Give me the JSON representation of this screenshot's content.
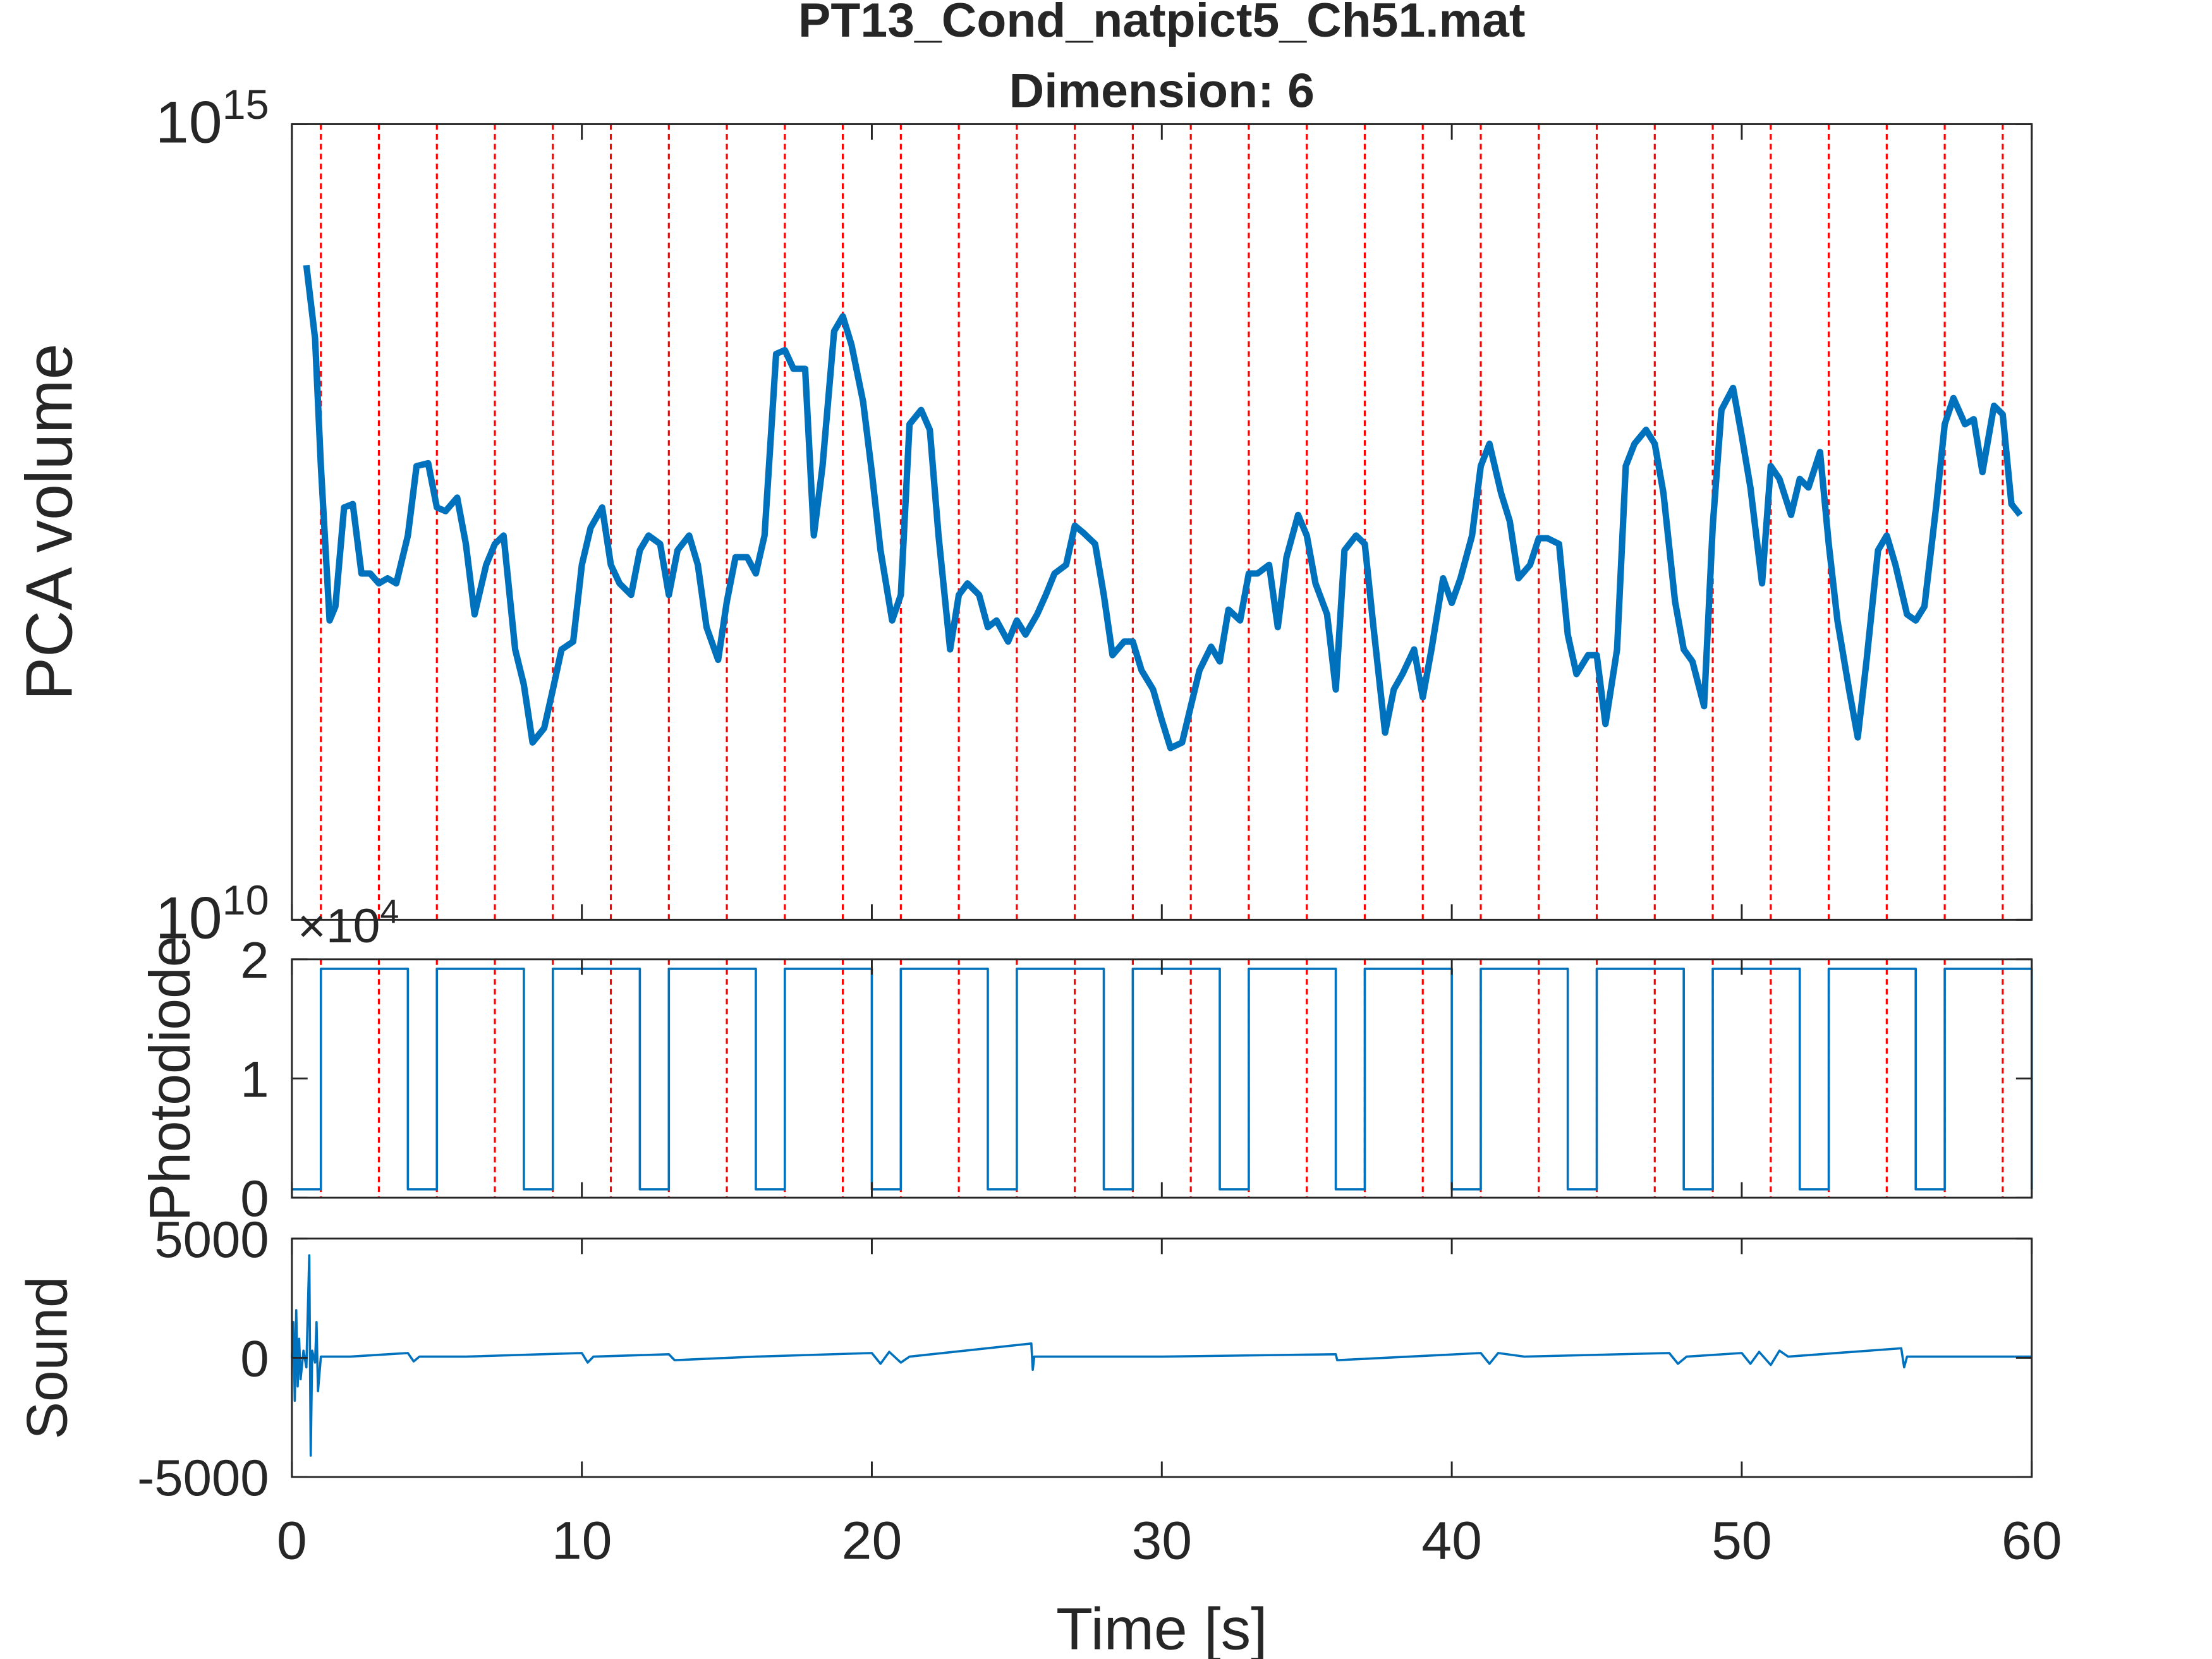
{
  "chart_data": [
    {
      "type": "line",
      "title": [
        "PT13_Cond_natpict5_Ch51.mat",
        "Dimension: 6"
      ],
      "ylabel": "PCA volume",
      "yscale": "log",
      "ylim": [
        10000000000.0,
        1000000000000000.0
      ],
      "yticks": [
        {
          "value": 10000000000.0,
          "label": "10^10"
        },
        {
          "value": 1000000000000000.0,
          "label": "10^15"
        }
      ],
      "xlim": [
        0,
        60
      ],
      "xticks": [
        0,
        10,
        20,
        30,
        40,
        50,
        60
      ],
      "show_xtick_labels": false,
      "vlines": [
        1,
        3,
        5,
        7,
        9,
        11,
        13,
        15,
        17,
        19,
        21,
        23,
        25,
        27,
        29,
        31,
        33,
        35,
        37,
        39,
        41,
        43,
        45,
        47,
        49,
        51,
        53,
        55,
        57,
        59
      ],
      "vline_color": "#ff0000",
      "series": [
        {
          "color": "#0072bd",
          "x": [
            0.5,
            0.8,
            1,
            1.3,
            1.5,
            1.8,
            2.1,
            2.4,
            2.7,
            3,
            3.3,
            3.6,
            4,
            4.3,
            4.7,
            5,
            5.3,
            5.7,
            6,
            6.3,
            6.7,
            7,
            7.3,
            7.7,
            8,
            8.3,
            8.7,
            9,
            9.3,
            9.7,
            10,
            10.3,
            10.7,
            11,
            11.3,
            11.7,
            12,
            12.3,
            12.7,
            13,
            13.3,
            13.7,
            14,
            14.3,
            14.7,
            15,
            15.3,
            15.7,
            16,
            16.3,
            16.7,
            17,
            17.3,
            17.7,
            18,
            18.3,
            18.7,
            19,
            19.3,
            19.7,
            20,
            20.3,
            20.7,
            21,
            21.3,
            21.7,
            22,
            22.3,
            22.7,
            23,
            23.3,
            23.7,
            24,
            24.3,
            24.7,
            25,
            25.3,
            25.7,
            26,
            26.3,
            26.7,
            27,
            27.3,
            27.7,
            28,
            28.3,
            28.7,
            29,
            29.3,
            29.7,
            30,
            30.3,
            30.7,
            31,
            31.3,
            31.7,
            32,
            32.3,
            32.7,
            33,
            33.3,
            33.7,
            34,
            34.3,
            34.7,
            35,
            35.3,
            35.7,
            36,
            36.3,
            36.7,
            37,
            37.3,
            37.7,
            38,
            38.3,
            38.7,
            39,
            39.3,
            39.7,
            40,
            40.3,
            40.7,
            41,
            41.3,
            41.7,
            42,
            42.3,
            42.7,
            43,
            43.3,
            43.7,
            44,
            44.3,
            44.7,
            45,
            45.3,
            45.7,
            46,
            46.3,
            46.7,
            47,
            47.3,
            47.7,
            48,
            48.3,
            48.7,
            49,
            49.3,
            49.7,
            50,
            50.3,
            50.7,
            51,
            51.3,
            51.7,
            52,
            52.3,
            52.7,
            53,
            53.3,
            53.7,
            54,
            54.3,
            54.7,
            55,
            55.3,
            55.7,
            56,
            56.3,
            56.7,
            57,
            57.3,
            57.7,
            58,
            58.3,
            58.7,
            59,
            59.3,
            59.6
          ],
          "values": [
            130000000000000.0,
            45000000000000.0,
            7100000000000.0,
            760000000000.0,
            930000000000.0,
            3900000000000.0,
            4100000000000.0,
            1500000000000.0,
            1500000000000.0,
            1300000000000.0,
            1400000000000.0,
            1300000000000.0,
            2600000000000.0,
            7100000000000.0,
            7400000000000.0,
            3900000000000.0,
            3700000000000.0,
            4500000000000.0,
            2300000000000.0,
            830000000000.0,
            1700000000000.0,
            2300000000000.0,
            2600000000000.0,
            500000000000.0,
            300000000000.0,
            130000000000.0,
            160000000000.0,
            280000000000.0,
            500000000000.0,
            560000000000.0,
            1700000000000.0,
            2900000000000.0,
            3900000000000.0,
            1700000000000.0,
            1300000000000.0,
            1100000000000.0,
            2100000000000.0,
            2600000000000.0,
            2300000000000.0,
            1100000000000.0,
            2100000000000.0,
            2600000000000.0,
            1700000000000.0,
            690000000000.0,
            430000000000.0,
            1000000000000.0,
            1900000000000.0,
            1900000000000.0,
            1500000000000.0,
            2600000000000.0,
            36000000000000.0,
            38000000000000.0,
            29000000000000.0,
            29000000000000.0,
            2600000000000.0,
            7100000000000.0,
            50000000000000.0,
            62000000000000.0,
            41000000000000.0,
            18000000000000.0,
            6500000000000.0,
            2100000000000.0,
            760000000000.0,
            1100000000000.0,
            13000000000000.0,
            16000000000000.0,
            12000000000000.0,
            2600000000000.0,
            500000000000.0,
            1100000000000.0,
            1300000000000.0,
            1100000000000.0,
            690000000000.0,
            760000000000.0,
            560000000000.0,
            760000000000.0,
            620000000000.0,
            830000000000.0,
            1100000000000.0,
            1500000000000.0,
            1700000000000.0,
            3000000000000.0,
            2700000000000.0,
            2300000000000.0,
            1100000000000.0,
            460000000000.0,
            560000000000.0,
            560000000000.0,
            370000000000.0,
            280000000000.0,
            180000000000.0,
            120000000000.0,
            130000000000.0,
            220000000000.0,
            370000000000.0,
            520000000000.0,
            420000000000.0,
            890000000000.0,
            760000000000.0,
            1500000000000.0,
            1500000000000.0,
            1700000000000.0,
            690000000000.0,
            1900000000000.0,
            3500000000000.0,
            2600000000000.0,
            1300000000000.0,
            830000000000.0,
            280000000000.0,
            2100000000000.0,
            2600000000000.0,
            2300000000000.0,
            690000000000.0,
            150000000000.0,
            280000000000.0,
            350000000000.0,
            500000000000.0,
            250000000000.0,
            500000000000.0,
            1400000000000.0,
            980000000000.0,
            1400000000000.0,
            2600000000000.0,
            7100000000000.0,
            9800000000000.0,
            4800000000000.0,
            3200000000000.0,
            1400000000000.0,
            1700000000000.0,
            2500000000000.0,
            2500000000000.0,
            2300000000000.0,
            620000000000.0,
            350000000000.0,
            460000000000.0,
            460000000000.0,
            170000000000.0,
            500000000000.0,
            7100000000000.0,
            9800000000000.0,
            12000000000000.0,
            9800000000000.0,
            4800000000000.0,
            1000000000000.0,
            500000000000.0,
            420000000000.0,
            220000000000.0,
            3000000000000.0,
            16000000000000.0,
            22000000000000.0,
            11000000000000.0,
            5200000000000.0,
            1300000000000.0,
            7100000000000.0,
            5900000000000.0,
            3500000000000.0,
            5900000000000.0,
            5200000000000.0,
            8700000000000.0,
            2300000000000.0,
            760000000000.0,
            280000000000.0,
            140000000000.0,
            420000000000.0,
            2100000000000.0,
            2600000000000.0,
            1700000000000.0,
            830000000000.0,
            760000000000.0,
            930000000000.0,
            3900000000000.0,
            13000000000000.0,
            19000000000000.0,
            13000000000000.0,
            14000000000000.0,
            6500000000000.0,
            17000000000000.0,
            15000000000000.0,
            4100000000000.0,
            3500000000000.0
          ]
        }
      ]
    },
    {
      "type": "line",
      "ylabel": "Photodiode",
      "y_multiplier": "×10^4",
      "ylim": [
        0,
        20000
      ],
      "yticks": [
        0,
        {
          "value": 10000,
          "label": "1"
        },
        {
          "value": 20000,
          "label": "2"
        }
      ],
      "xlim": [
        0,
        60
      ],
      "xticks": [
        0,
        10,
        20,
        30,
        40,
        50,
        60
      ],
      "show_xtick_labels": false,
      "vlines": [
        1,
        3,
        5,
        7,
        9,
        11,
        13,
        15,
        17,
        19,
        21,
        23,
        25,
        27,
        29,
        31,
        33,
        35,
        37,
        39,
        41,
        43,
        45,
        47,
        49,
        51,
        53,
        55,
        57,
        59
      ],
      "vline_color": "#ff0000",
      "series": [
        {
          "color": "#0072bd",
          "x": [
            0,
            1,
            1,
            4,
            4,
            5,
            5,
            8,
            8,
            9,
            9,
            12,
            12,
            13,
            13,
            16,
            16,
            17,
            17,
            20,
            20,
            21,
            21,
            24,
            24,
            25,
            25,
            28,
            28,
            29,
            29,
            32,
            32,
            33,
            33,
            36,
            36,
            37,
            37,
            40,
            40,
            41,
            41,
            44,
            44,
            45,
            45,
            48,
            48,
            49,
            49,
            52,
            52,
            53,
            53,
            56,
            56,
            57,
            57,
            60,
            60
          ],
          "values": [
            700,
            700,
            19200,
            19200,
            700,
            700,
            19200,
            19200,
            700,
            700,
            19200,
            19200,
            700,
            700,
            19200,
            19200,
            700,
            700,
            19200,
            19200,
            700,
            700,
            19200,
            19200,
            700,
            700,
            19200,
            19200,
            700,
            700,
            19200,
            19200,
            700,
            700,
            19200,
            19200,
            700,
            700,
            19200,
            19200,
            700,
            700,
            19200,
            19200,
            700,
            700,
            19200,
            19200,
            700,
            700,
            19200,
            19200,
            700,
            700,
            19200,
            19200,
            700,
            700,
            19200,
            19200,
            700
          ]
        }
      ]
    },
    {
      "type": "line",
      "ylabel": "Sound",
      "xlabel": "Time [s]",
      "ylim": [
        -5000,
        5000
      ],
      "yticks": [
        -5000,
        0,
        5000
      ],
      "xlim": [
        0,
        60
      ],
      "xticks": [
        0,
        10,
        20,
        30,
        40,
        50,
        60
      ],
      "show_xtick_labels": true,
      "series": [
        {
          "color": "#0072bd",
          "x": [
            0,
            0.05,
            0.1,
            0.15,
            0.2,
            0.25,
            0.3,
            0.4,
            0.5,
            0.6,
            0.65,
            0.7,
            0.8,
            0.85,
            0.9,
            1,
            2,
            4,
            4.2,
            4.4,
            6,
            10,
            10.2,
            10.4,
            13,
            13.2,
            16,
            20,
            20.3,
            20.6,
            21,
            21.3,
            25.5,
            25.55,
            25.6,
            27,
            30,
            36,
            36.05,
            41,
            41.3,
            41.6,
            42.5,
            47.5,
            47.8,
            48.1,
            50,
            50.3,
            50.6,
            51,
            51.3,
            51.6,
            55.5,
            55.6,
            55.7,
            60
          ],
          "values": [
            0,
            1500,
            -1800,
            2000,
            -1200,
            800,
            -900,
            300,
            -400,
            4300,
            -4100,
            300,
            -200,
            1500,
            -1400,
            50,
            50,
            200,
            -150,
            50,
            50,
            200,
            -200,
            50,
            150,
            -100,
            50,
            200,
            -250,
            250,
            -200,
            50,
            600,
            -500,
            50,
            50,
            50,
            150,
            -100,
            200,
            -250,
            200,
            50,
            200,
            -250,
            50,
            200,
            -250,
            250,
            -300,
            300,
            50,
            400,
            -400,
            50,
            50
          ]
        }
      ]
    }
  ]
}
